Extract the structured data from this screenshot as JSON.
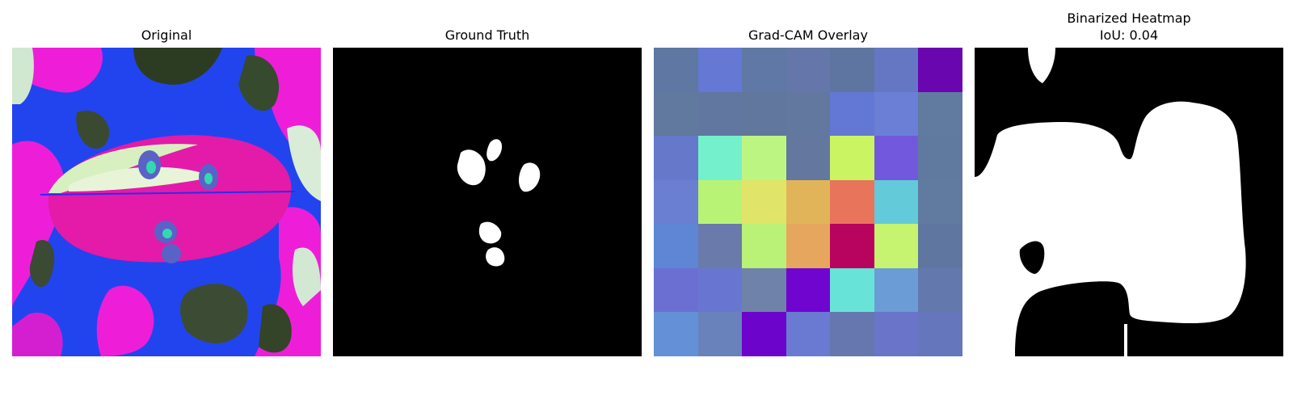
{
  "panels": {
    "original": {
      "title": "Original"
    },
    "ground_truth": {
      "title": "Ground Truth"
    },
    "gradcam": {
      "title": "Grad-CAM Overlay",
      "grid": [
        [
          "#5e77a3",
          "#6478d4",
          "#5f78a5",
          "#6576aa",
          "#5e75a1",
          "#6577c2",
          "#6a06b0"
        ],
        [
          "#61789f",
          "#61779f",
          "#62779e",
          "#62789f",
          "#6378d4",
          "#6c7fd6",
          "#617aa0"
        ],
        [
          "#6578ca",
          "#74f0cc",
          "#bdf583",
          "#63779f",
          "#cbf463",
          "#7258dc",
          "#607a9f"
        ],
        [
          "#6b7fd2",
          "#b9f375",
          "#e0e468",
          "#e2b45a",
          "#e8745c",
          "#62cad8",
          "#617aa0"
        ],
        [
          "#5e86d4",
          "#6a7aaa",
          "#b9f276",
          "#e7a65e",
          "#b8045e",
          "#c6f370",
          "#5f76a0"
        ],
        [
          "#6b6fd2",
          "#6876d2",
          "#6f82aa",
          "#7005d0",
          "#68e3d8",
          "#6b9cd6",
          "#6379ae"
        ],
        [
          "#6490d8",
          "#6a82bc",
          "#6d04cc",
          "#6a7ad2",
          "#6677b0",
          "#6a74c8",
          "#6576bc"
        ]
      ]
    },
    "binarized": {
      "title_line1": "Binarized Heatmap",
      "title_line2": "IoU: 0.04"
    }
  }
}
